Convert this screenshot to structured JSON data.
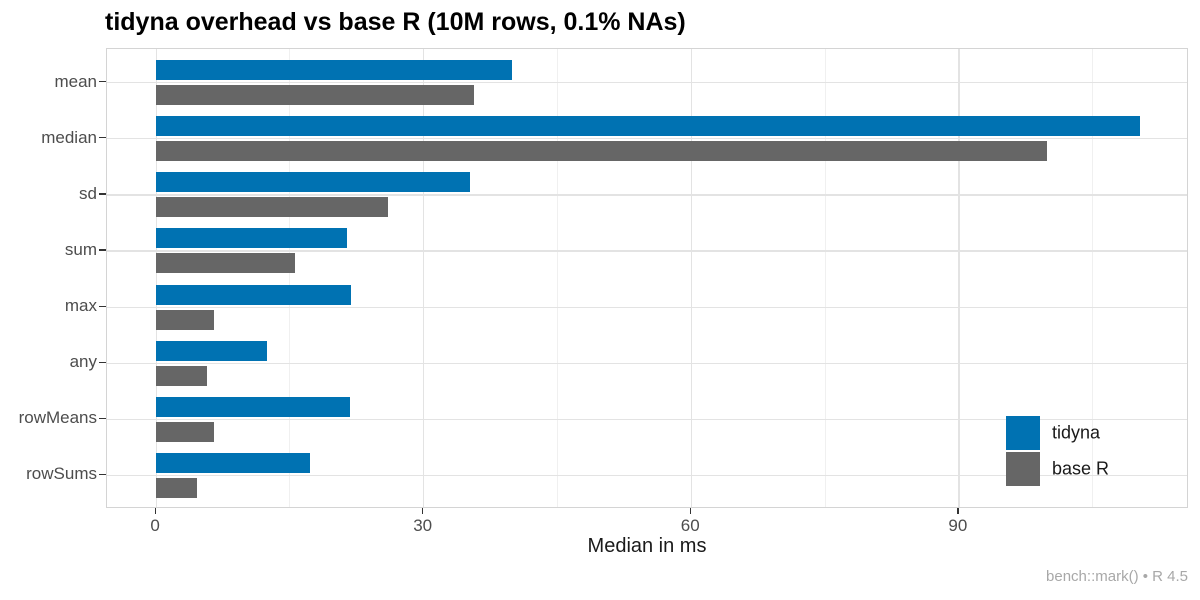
{
  "chart_data": {
    "type": "bar",
    "orientation": "horizontal",
    "title": "tidyna overhead vs base R (10M rows, 0.1% NAs)",
    "xlabel": "Median in ms",
    "ylabel": "",
    "caption": "bench::mark() • R 4.5",
    "categories": [
      "mean",
      "median",
      "sd",
      "sum",
      "max",
      "any",
      "rowMeans",
      "rowSums"
    ],
    "series": [
      {
        "name": "tidyna",
        "color": "#0072B2",
        "values": [
          39.9,
          110.3,
          35.2,
          21.4,
          21.9,
          12.4,
          21.7,
          17.3
        ]
      },
      {
        "name": "base R",
        "color": "#666666",
        "values": [
          35.6,
          99.9,
          26.0,
          15.6,
          6.5,
          5.7,
          6.5,
          4.6
        ]
      }
    ],
    "x_ticks": [
      0,
      30,
      60,
      90
    ],
    "x_tick_labels": [
      "0",
      "30",
      "60",
      "90"
    ],
    "x_minor_ticks": [
      15,
      45,
      75,
      105
    ],
    "xlim": [
      -5.5,
      115.8
    ],
    "grid": true,
    "legend_position": "inside-right",
    "units": "ms"
  },
  "theme": {
    "grid_major_color": "#e3e3e3",
    "grid_minor_color": "#f0f0f0",
    "panel_border_color": "#d4d4d4",
    "tick_color": "#333333",
    "axis_text_color": "#4d4d4d",
    "title_color": "#000000",
    "axis_title_color": "#1a1a1a",
    "legend_text_color": "#1a1a1a",
    "caption_color": "#a8a8a8",
    "background": "#ffffff"
  }
}
